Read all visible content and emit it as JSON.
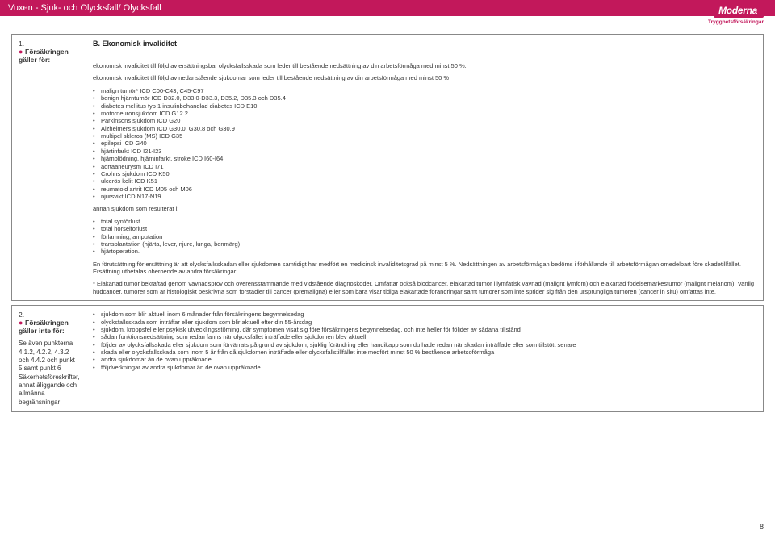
{
  "header": {
    "title": "Vuxen - Sjuk- och Olycksfall/ Olycksfall"
  },
  "logo": {
    "brand": "Moderna",
    "tagline": "Trygghetsförsäkringar"
  },
  "section1": {
    "num": "1.",
    "label": "Försäkringen gäller för:",
    "title": "B. Ekonomisk invaliditet",
    "intro1": "ekonomisk invaliditet till följd av ersättningsbar olycksfallsskada som leder till bestående nedsättning av din arbetsförmåga med minst 50 %.",
    "intro2": "ekonomisk invaliditet till följd av nedanstående sjukdomar som leder till bestående nedsättning av din arbetsförmåga med minst 50 %",
    "list_a": [
      "malign tumör* ICD C00-C43, C45-C97",
      "benign hjärntumör ICD D32.0, D33.0-D33.3, D35.2, D35.3 och D35.4",
      "diabetes mellitus typ 1 insulinbehandlad diabetes ICD E10",
      "motorneuronsjukdom ICD G12.2",
      "Parkinsons sjukdom ICD G20",
      "Alzheimers sjukdom ICD G30.0, G30.8 och G30.9",
      "multipel skleros (MS) ICD G35",
      "epilepsi ICD G40",
      "hjärtinfarkt ICD I21-I23",
      "hjärnblödning, hjärninfarkt, stroke ICD I60-I64",
      "aortaaneurysm ICD I71",
      "Crohns sjukdom ICD K50",
      "ulcerös kolit ICD K51",
      "reumatoid artrit ICD M05 och M06",
      "njursvikt ICD N17-N19"
    ],
    "list_b_intro": "annan sjukdom som resulterat i:",
    "list_b": [
      "total synförlust",
      "total hörselförlust",
      "förlamning, amputation",
      "transplantation (hjärta, lever, njure, lunga, benmärg)",
      "hjärtoperation."
    ],
    "para1": "En förutsättning för ersättning är att olycksfallsskadan eller sjukdomen samtidigt har medfört en medicinsk invaliditetsgrad på minst 5 %. Nedsättningen av arbetsförmågan bedöms i förhållande till arbetsförmågan omedelbart före skadetillfället. Ersättning utbetalas oberoende av andra försäkringar.",
    "para2": "* Elakartad tumör bekräftad genom vävnadsprov och överensstämmande med vidstående diagnoskoder. Omfattar också blodcancer, elakartad tumör i lymfatisk vävnad (malignt lymfom) och elakartad födelsemärkestumör (malignt melanom). Vanlig hudcancer, tumörer som är histologiskt beskrivna som förstadier till cancer (premaligna) eller som bara visar tidiga elakartade förändringar samt tumörer som inte sprider sig från den ursprungliga tumören (cancer in situ) omfattas inte."
  },
  "section2": {
    "num": "2.",
    "label": "Försäkringen gäller inte för:",
    "sub": "Se även punkterna 4.1.2, 4.2.2, 4.3.2 och 4.4.2 och punkt 5 samt punkt 6 Säkerhetsföreskrifter, annat åliggande och allmänna begränsningar",
    "list": [
      "sjukdom som blir aktuell inom 6 månader från försäkringens begynnelsedag",
      "olycksfallsskada som inträffar eller sjukdom som blir aktuell efter din 55-årsdag",
      "sjukdom, kroppsfel eller psykisk utvecklingsstörning, där symptomen visat sig före försäkringens begynnelsedag, och inte heller för följder av sådana tillstånd",
      "sådan funktionsnedsättning som redan fanns när olycksfallet inträffade eller sjukdomen blev aktuell",
      "följder av olycksfallsskada eller sjukdom som förvärrats på grund av sjukdom, sjuklig förändring eller handikapp som du hade redan när skadan inträffade eller som tillstött senare",
      "skada eller olycksfallsskada som inom 5 år från då sjukdomen inträffade eller olycksfallstillfället inte medfört minst 50 % bestående arbetsoförmåga",
      "andra sjukdomar än de ovan uppräknade",
      "följdverkningar av andra sjukdomar än de ovan uppräknade"
    ]
  },
  "page": {
    "num": "8"
  },
  "colors": {
    "brand": "#c2185b",
    "border": "#888888",
    "text": "#333333",
    "bg": "#ffffff"
  }
}
